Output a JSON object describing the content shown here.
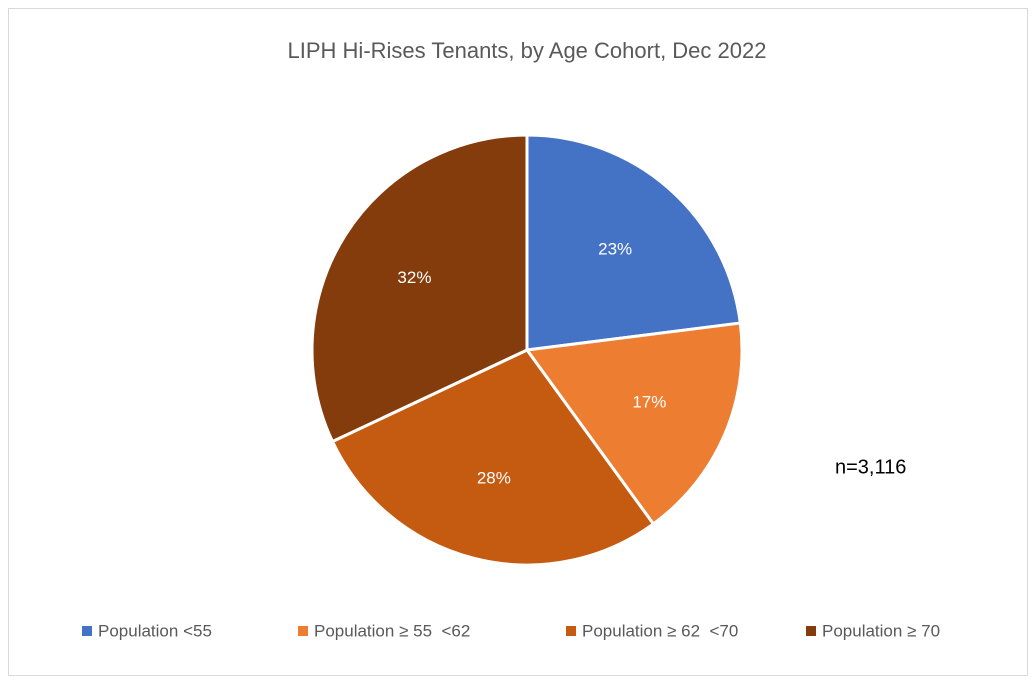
{
  "chart_data": {
    "type": "pie",
    "title": "LIPH Hi-Rises Tenants, by Age Cohort, Dec 2022",
    "categories": [
      "Population <55",
      "Population ≥ 55  <62",
      "Population ≥ 62  <70",
      "Population ≥ 70"
    ],
    "values": [
      23,
      17,
      28,
      32
    ],
    "value_labels": [
      "23%",
      "17%",
      "28%",
      "32%"
    ],
    "colors": [
      "#4472c4",
      "#ed7d31",
      "#c55a11",
      "#843c0c"
    ],
    "annotation": "n=3,116",
    "legend": "bottom"
  }
}
